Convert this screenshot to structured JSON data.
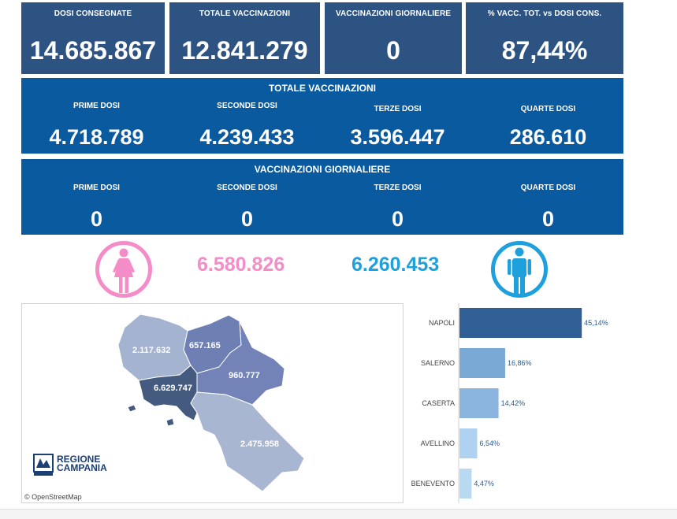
{
  "kpis": [
    {
      "title": "DOSI  CONSEGNATE",
      "value": "14.685.867"
    },
    {
      "title": "TOTALE VACCINAZIONI",
      "value": "12.841.279"
    },
    {
      "title": "VACCINAZIONI GIORNALIERE",
      "value": "0"
    },
    {
      "title": "% VACC. TOT. vs DOSI CONS.",
      "value": "87,44%"
    }
  ],
  "totale": {
    "title": "TOTALE VACCINAZIONI",
    "cols": [
      {
        "label": "PRIME DOSI",
        "value": "4.718.789"
      },
      {
        "label": "SECONDE DOSI",
        "value": "4.239.433"
      },
      {
        "label": "TERZE DOSI",
        "value": "3.596.447"
      },
      {
        "label": "QUARTE DOSI",
        "value": "286.610"
      }
    ]
  },
  "giornaliere": {
    "title": "VACCINAZIONI GIORNALIERE",
    "cols": [
      {
        "label": "PRIME DOSI",
        "value": "0"
      },
      {
        "label": "SECONDE DOSI",
        "value": "0"
      },
      {
        "label": "TERZE DOSI",
        "value": "0"
      },
      {
        "label": "QUARTE DOSI",
        "value": "0"
      }
    ]
  },
  "gender": {
    "female_value": "6.580.826",
    "male_value": "6.260.453",
    "female_color": "#f48cc8",
    "male_color": "#1ea0dc"
  },
  "map": {
    "regions": [
      {
        "name": "caserta",
        "value": "2.117.632",
        "color": "#a4b3d0"
      },
      {
        "name": "benevento",
        "value": "657.165",
        "color": "#6d7fb3"
      },
      {
        "name": "avellino",
        "value": "960.777",
        "color": "#7383b8"
      },
      {
        "name": "napoli",
        "value": "6.629.747",
        "color": "#445a7e"
      },
      {
        "name": "salerno",
        "value": "2.475.958",
        "color": "#a9b6d1"
      }
    ],
    "attribution": "© OpenStreetMap",
    "logo_text_1": "REGIONE",
    "logo_text_2": "CAMPANIA"
  },
  "chart_data": {
    "type": "bar",
    "orientation": "horizontal",
    "categories": [
      "NAPOLI",
      "SALERNO",
      "CASERTA",
      "AVELLINO",
      "BENEVENTO"
    ],
    "values": [
      45.14,
      16.86,
      14.42,
      6.54,
      4.47
    ],
    "labels": [
      "45,14%",
      "16,86%",
      "14,42%",
      "6,54%",
      "4,47%"
    ],
    "colors": [
      "#2f5f94",
      "#7ba9d6",
      "#8bb5dd",
      "#aed2ef",
      "#b7d9f2"
    ],
    "xlim": [
      0,
      48
    ]
  }
}
